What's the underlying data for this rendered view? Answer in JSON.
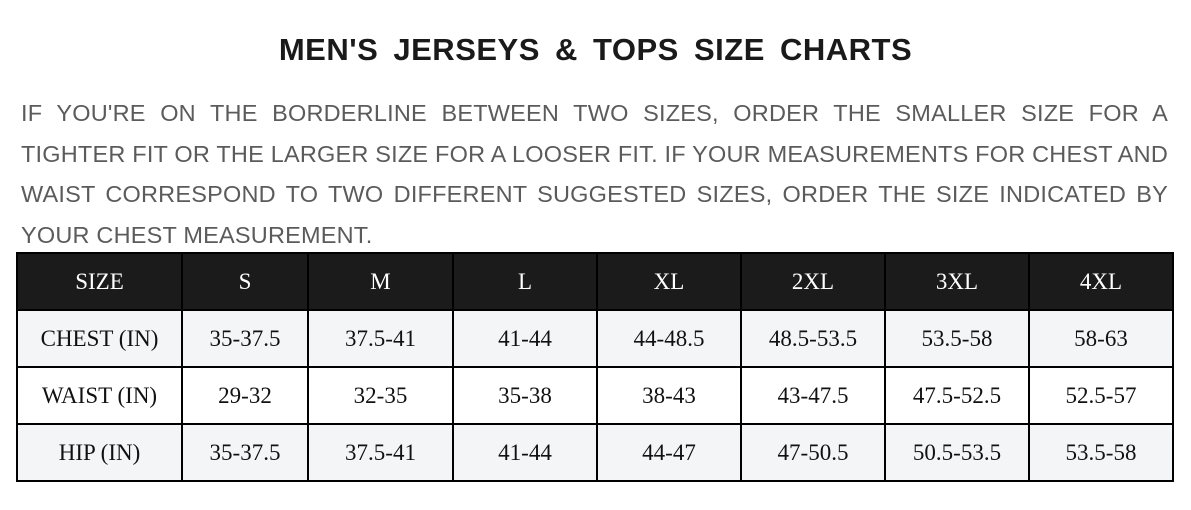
{
  "title": "MEN'S JERSEYS & TOPS SIZE CHARTS",
  "note": "IF YOU'RE ON THE BORDERLINE BETWEEN TWO SIZES, ORDER THE SMALLER SIZE FOR A TIGHTER FIT OR THE LARGER SIZE FOR A LOOSER FIT. IF YOUR MEASUREMENTS FOR CHEST AND WAIST CORRESPOND TO TWO DIFFERENT SUGGESTED SIZES, ORDER THE SIZE INDICATED BY YOUR CHEST MEASUREMENT.",
  "table": {
    "header": [
      "SIZE",
      "S",
      "M",
      "L",
      "XL",
      "2XL",
      "3XL",
      "4XL"
    ],
    "rows": [
      [
        "CHEST (IN)",
        "35-37.5",
        "37.5-41",
        "41-44",
        "44-48.5",
        "48.5-53.5",
        "53.5-58",
        "58-63"
      ],
      [
        "WAIST (IN)",
        "29-32",
        "32-35",
        "35-38",
        "38-43",
        "43-47.5",
        "47.5-52.5",
        "52.5-57"
      ],
      [
        "HIP (IN)",
        "35-37.5",
        "37.5-41",
        "41-44",
        "44-47",
        "47-50.5",
        "50.5-53.5",
        "53.5-58"
      ]
    ]
  },
  "colors": {
    "header_bg": "#1b1b1b",
    "alt_row_bg": "#f4f5f7",
    "note_text": "#5b5b5b"
  }
}
